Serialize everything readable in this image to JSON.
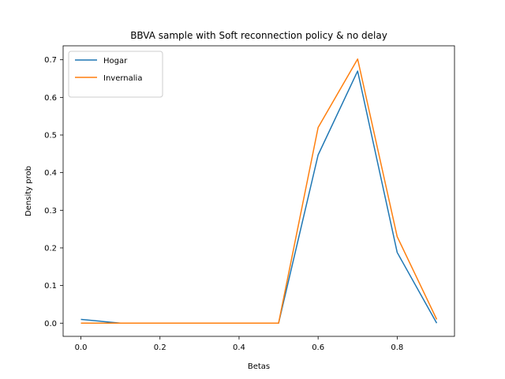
{
  "chart_data": {
    "type": "line",
    "title": "BBVA sample with Soft reconnection policy & no delay",
    "xlabel": "Betas",
    "ylabel": "Density prob",
    "x": [
      0.0,
      0.1,
      0.2,
      0.3,
      0.4,
      0.5,
      0.6,
      0.7,
      0.8,
      0.9
    ],
    "series": [
      {
        "name": "Hogar",
        "color": "#1f77b4",
        "values": [
          0.01,
          0.0,
          0.0,
          0.0,
          0.0,
          0.0,
          0.447,
          0.67,
          0.188,
          0.0
        ]
      },
      {
        "name": "Invernalia",
        "color": "#ff7f0e",
        "values": [
          0.0,
          0.0,
          0.0,
          0.0,
          0.0,
          0.0,
          0.52,
          0.702,
          0.23,
          0.01
        ]
      }
    ],
    "xlim": [
      -0.045,
      0.945
    ],
    "ylim": [
      -0.0351,
      0.7371
    ],
    "xticks": [
      0.0,
      0.2,
      0.4,
      0.6,
      0.8
    ],
    "xtick_labels": [
      "0.0",
      "0.2",
      "0.4",
      "0.6",
      "0.8"
    ],
    "yticks": [
      0.0,
      0.1,
      0.2,
      0.3,
      0.4,
      0.5,
      0.6,
      0.7
    ],
    "ytick_labels": [
      "0.0",
      "0.1",
      "0.2",
      "0.3",
      "0.4",
      "0.5",
      "0.6",
      "0.7"
    ],
    "legend": "top-left",
    "grid": false
  }
}
